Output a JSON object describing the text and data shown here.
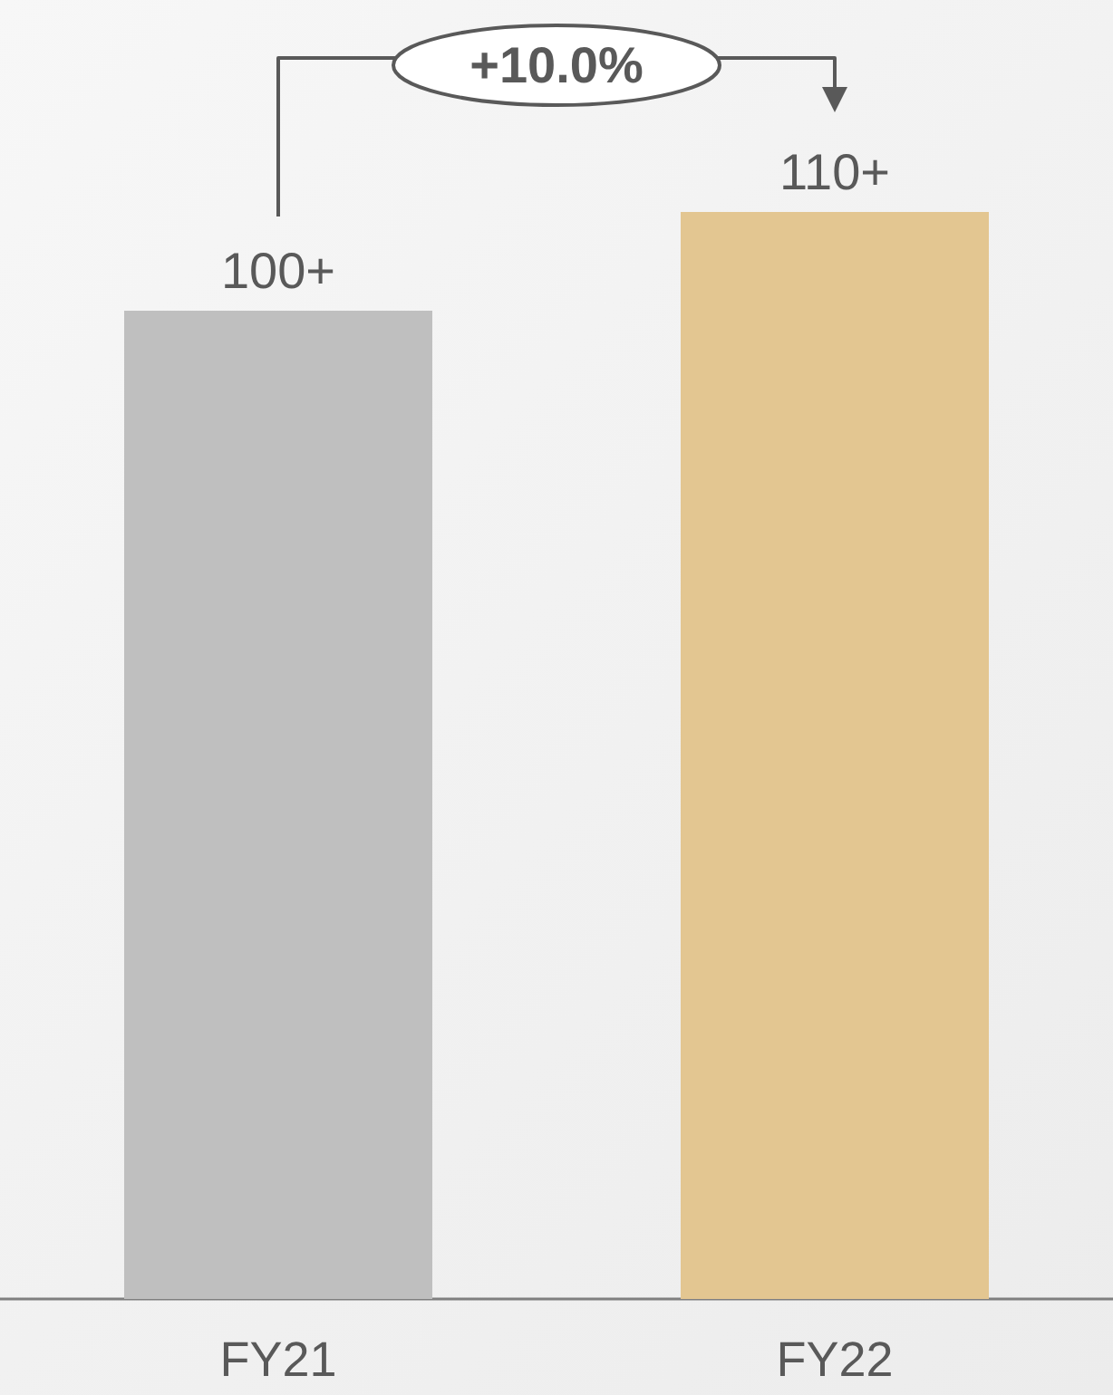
{
  "chart_data": {
    "type": "bar",
    "categories": [
      "FY21",
      "FY22"
    ],
    "values": [
      100,
      110
    ],
    "colors": [
      "#bfbfbf",
      "#e3c691"
    ],
    "value_labels": [
      "100+",
      "110+"
    ],
    "annotations": [
      "+10.0%"
    ]
  }
}
